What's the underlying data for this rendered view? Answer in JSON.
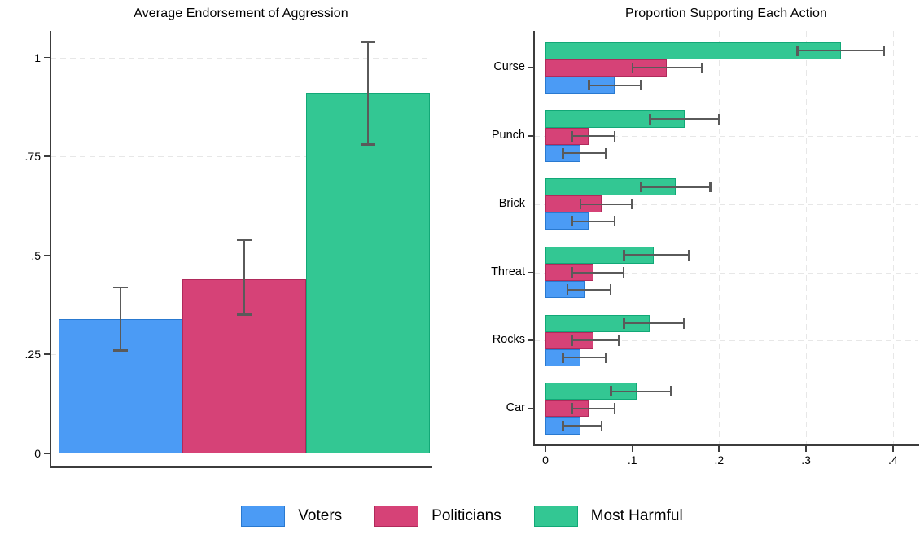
{
  "figure": {
    "background": "#ffffff"
  },
  "colors": {
    "voters_fill": "#4B9BF5",
    "voters_border": "#2979D0",
    "politicians_fill": "#D64277",
    "politicians_border": "#B02A5B",
    "most_harmful_fill": "#33C793",
    "most_harmful_border": "#12A877",
    "error_bar": "#5a5a5a",
    "axis_line": "#3c3c3c",
    "grid_line": "#e7e7e7",
    "text": "#000000"
  },
  "legend": {
    "items": [
      {
        "label": "Voters",
        "series": "voters"
      },
      {
        "label": "Politicians",
        "series": "politicians"
      },
      {
        "label": "Most Harmful",
        "series": "most_harmful"
      }
    ]
  },
  "chart_data": [
    {
      "type": "bar",
      "title": "Average Endorsement of Aggression",
      "categories": [
        "Voters",
        "Politicians",
        "Most Harmful"
      ],
      "series_keys": [
        "voters",
        "politicians",
        "most_harmful"
      ],
      "values": [
        0.34,
        0.44,
        0.91
      ],
      "ci_low": [
        0.26,
        0.35,
        0.78
      ],
      "ci_high": [
        0.42,
        0.54,
        1.04
      ],
      "ytick_labels": [
        "0",
        ".25",
        ".5",
        ".75",
        "1"
      ],
      "ytick_values": [
        0,
        0.25,
        0.5,
        0.75,
        1
      ],
      "ylim": [
        0,
        1.07
      ],
      "grid": "horizontal-dashed",
      "xlabel": "",
      "ylabel": ""
    },
    {
      "type": "hbar",
      "title": "Proportion Supporting Each Action",
      "categories": [
        "Curse",
        "Punch",
        "Brick",
        "Threat",
        "Rocks",
        "Car"
      ],
      "series": [
        {
          "name": "Most Harmful",
          "key": "most_harmful",
          "values": [
            0.34,
            0.16,
            0.15,
            0.125,
            0.12,
            0.105
          ],
          "ci_low": [
            0.29,
            0.12,
            0.11,
            0.09,
            0.09,
            0.075
          ],
          "ci_high": [
            0.39,
            0.2,
            0.19,
            0.165,
            0.16,
            0.145
          ]
        },
        {
          "name": "Politicians",
          "key": "politicians",
          "values": [
            0.14,
            0.05,
            0.065,
            0.055,
            0.055,
            0.05
          ],
          "ci_low": [
            0.1,
            0.03,
            0.04,
            0.03,
            0.03,
            0.03
          ],
          "ci_high": [
            0.18,
            0.08,
            0.1,
            0.09,
            0.085,
            0.08
          ]
        },
        {
          "name": "Voters",
          "key": "voters",
          "values": [
            0.08,
            0.04,
            0.05,
            0.045,
            0.04,
            0.04
          ],
          "ci_low": [
            0.05,
            0.02,
            0.03,
            0.025,
            0.02,
            0.02
          ],
          "ci_high": [
            0.11,
            0.07,
            0.08,
            0.075,
            0.07,
            0.065
          ]
        }
      ],
      "xtick_labels": [
        "0",
        ".1",
        ".2",
        ".3",
        ".4"
      ],
      "xtick_values": [
        0,
        0.1,
        0.2,
        0.3,
        0.4
      ],
      "xlim": [
        0,
        0.43
      ],
      "grid": "both-dashed",
      "legend_position": "bottom"
    }
  ]
}
